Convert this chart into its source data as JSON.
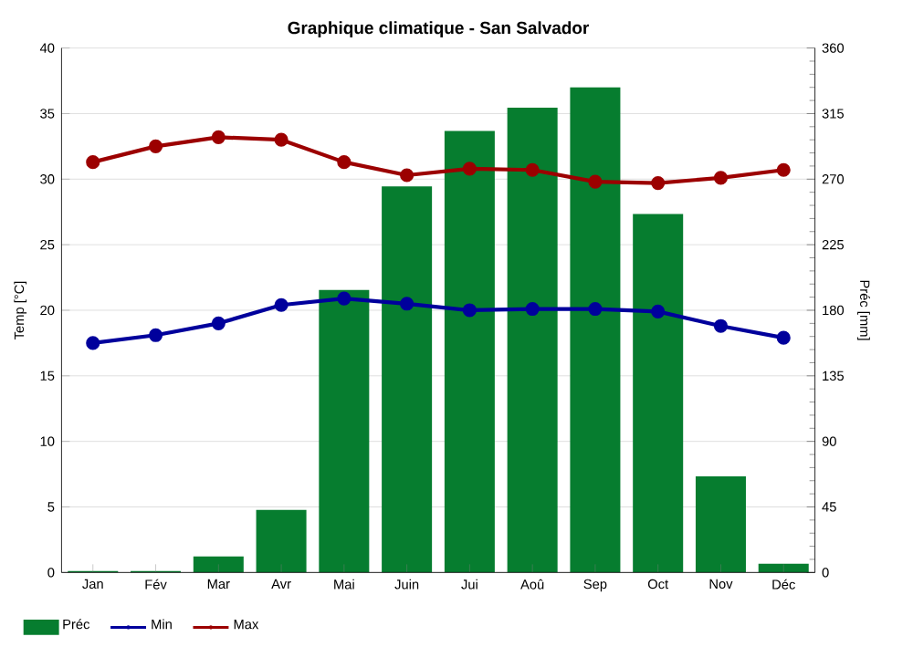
{
  "chart_data": {
    "type": "bar",
    "title": "Graphique climatique - San Salvador",
    "ylabel": "Temp [°C]",
    "y2label": "Préc [mm]",
    "categories": [
      "Jan",
      "Fév",
      "Mar",
      "Avr",
      "Mai",
      "Juin",
      "Jui",
      "Aoû",
      "Sep",
      "Oct",
      "Nov",
      "Déc"
    ],
    "series": [
      {
        "name": "Préc",
        "axis": "y2",
        "color": "#067d2f",
        "values": [
          1,
          1,
          11,
          43,
          194,
          265,
          303,
          319,
          333,
          246,
          66,
          6
        ]
      },
      {
        "name": "Min",
        "type": "line",
        "color": "#00009c",
        "values": [
          17.5,
          18.1,
          19.0,
          20.4,
          20.9,
          20.5,
          20.0,
          20.1,
          20.1,
          19.9,
          18.8,
          17.9
        ]
      },
      {
        "name": "Max",
        "type": "line",
        "color": "#9c0000",
        "values": [
          31.3,
          32.5,
          33.2,
          33.0,
          31.3,
          30.3,
          30.8,
          30.7,
          29.8,
          29.7,
          30.1,
          30.7
        ]
      }
    ],
    "ylim": [
      0,
      40
    ],
    "yticks": [
      0,
      5,
      10,
      15,
      20,
      25,
      30,
      35,
      40
    ],
    "y2lim": [
      0,
      360
    ],
    "y2ticks": [
      0,
      45,
      90,
      135,
      180,
      225,
      270,
      315,
      360
    ],
    "grid": true,
    "legend": "bottom left",
    "marker": "circle",
    "line_style": "solid"
  }
}
